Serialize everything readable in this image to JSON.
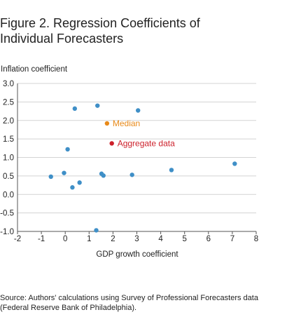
{
  "figure": {
    "title_line1": "Figure 2. Regression Coefficients of",
    "title_line2": "Individual Forecasters",
    "source_line1": "Source: Authors' calculations using Survey of Professional Forecasters data",
    "source_line2": "(Federal Reserve Bank of Philadelphia)."
  },
  "chart_data": {
    "type": "scatter",
    "title": "Figure 2. Regression Coefficients of Individual Forecasters",
    "xlabel": "GDP growth coefficient",
    "ylabel": "Inflation coefficient",
    "xlim": [
      -2,
      8
    ],
    "ylim": [
      -1.0,
      3.0
    ],
    "xticks": [
      -2,
      -1,
      0,
      1,
      2,
      3,
      4,
      5,
      6,
      7,
      8
    ],
    "yticks": [
      -1.0,
      -0.5,
      0.0,
      0.5,
      1.0,
      1.5,
      2.0,
      2.5,
      3.0
    ],
    "ytick_labels": [
      "-1.0",
      "-0.5",
      "0.0",
      "0.5",
      "1.0",
      "1.5",
      "2.0",
      "2.5",
      "3.0"
    ],
    "grid": true,
    "series": [
      {
        "name": "",
        "color": "#3f8fc7",
        "points": [
          {
            "x": 0.4,
            "y": 2.32
          },
          {
            "x": 1.35,
            "y": 2.4
          },
          {
            "x": 3.05,
            "y": 2.27
          },
          {
            "x": 0.1,
            "y": 1.22
          },
          {
            "x": -0.6,
            "y": 0.48
          },
          {
            "x": -0.05,
            "y": 0.58
          },
          {
            "x": 0.3,
            "y": 0.19
          },
          {
            "x": 0.6,
            "y": 0.32
          },
          {
            "x": 1.52,
            "y": 0.56
          },
          {
            "x": 1.6,
            "y": 0.51
          },
          {
            "x": 2.8,
            "y": 0.53
          },
          {
            "x": 4.45,
            "y": 0.66
          },
          {
            "x": 7.1,
            "y": 0.83
          },
          {
            "x": 1.3,
            "y": -0.97
          }
        ]
      },
      {
        "name": "Median",
        "color": "#e88a1a",
        "points": [
          {
            "x": 1.75,
            "y": 1.92
          }
        ]
      },
      {
        "name": "Aggregate data",
        "color": "#cc1f2a",
        "points": [
          {
            "x": 1.95,
            "y": 1.38
          }
        ]
      }
    ]
  }
}
